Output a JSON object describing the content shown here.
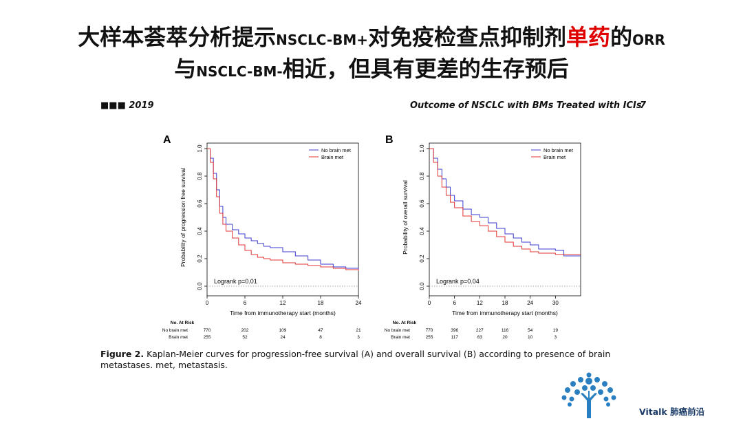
{
  "title": {
    "line1": [
      {
        "text": "大样本荟萃分析提示",
        "style": "big"
      },
      {
        "text": "NSCLC-BM+",
        "style": "small"
      },
      {
        "text": "对免疫检查点抑制剂",
        "style": "big"
      },
      {
        "text": "单药",
        "style": "red"
      },
      {
        "text": "的",
        "style": "big"
      },
      {
        "text": "ORR",
        "style": "small"
      }
    ],
    "line2": [
      {
        "text": "与",
        "style": "big"
      },
      {
        "text": "NSCLC-BM-",
        "style": "small"
      },
      {
        "text": "相近，但具有更差的生存预后",
        "style": "big"
      }
    ]
  },
  "header": {
    "left": "■■■ 2019",
    "right": "Outcome of NSCLC with BMs Treated with ICIs",
    "page": "7"
  },
  "chart_data": [
    {
      "type": "line",
      "panel": "A",
      "ylabel": "Probability of progression free survival",
      "xlabel": "Time from immunotherapy start (months)",
      "xlim": [
        0,
        24
      ],
      "ylim": [
        0,
        1
      ],
      "xticks": [
        "0",
        "6",
        "12",
        "18",
        "24"
      ],
      "yticks": [
        "0.0",
        "0.2",
        "0.4",
        "0.6",
        "0.8",
        "1.0"
      ],
      "legend": [
        "No brain met",
        "Brain met"
      ],
      "annotation": "Logrank p=0.01",
      "series": [
        {
          "name": "No brain met",
          "color": "#3b3bd0",
          "x": [
            0,
            0.5,
            1,
            1.5,
            2,
            2.5,
            3,
            4,
            5,
            6,
            7,
            8,
            9,
            10,
            12,
            14,
            16,
            18,
            20,
            22,
            24
          ],
          "y": [
            1,
            0.93,
            0.82,
            0.7,
            0.58,
            0.5,
            0.45,
            0.41,
            0.38,
            0.35,
            0.33,
            0.31,
            0.29,
            0.28,
            0.25,
            0.22,
            0.19,
            0.16,
            0.14,
            0.13,
            0.12
          ]
        },
        {
          "name": "Brain met",
          "color": "#e03434",
          "x": [
            0,
            0.5,
            1,
            1.5,
            2,
            2.5,
            3,
            4,
            5,
            6,
            7,
            8,
            9,
            10,
            12,
            14,
            16,
            18,
            20,
            22,
            24
          ],
          "y": [
            1,
            0.9,
            0.78,
            0.65,
            0.53,
            0.45,
            0.4,
            0.35,
            0.3,
            0.26,
            0.23,
            0.21,
            0.2,
            0.19,
            0.17,
            0.16,
            0.15,
            0.14,
            0.13,
            0.12,
            0.11
          ]
        }
      ],
      "risk_table": {
        "title": "No. At Risk",
        "rows": [
          {
            "label": "No brain met",
            "values": [
              "770",
              "202",
              "109",
              "47",
              "21"
            ]
          },
          {
            "label": "Brain met",
            "values": [
              "255",
              "52",
              "24",
              "8",
              "3"
            ]
          }
        ]
      }
    },
    {
      "type": "line",
      "panel": "B",
      "ylabel": "Probability of overall survival",
      "xlabel": "Time from immunotherapy start (months)",
      "xlim": [
        0,
        36
      ],
      "ylim": [
        0,
        1
      ],
      "xticks": [
        "0",
        "6",
        "12",
        "18",
        "24",
        "30"
      ],
      "yticks": [
        "0.0",
        "0.2",
        "0.4",
        "0.6",
        "0.8",
        "1.0"
      ],
      "legend": [
        "No brain met",
        "Brain met"
      ],
      "annotation": "Logrank p=0.04",
      "series": [
        {
          "name": "No brain met",
          "color": "#3b3bd0",
          "x": [
            0,
            1,
            2,
            3,
            4,
            5,
            6,
            8,
            10,
            12,
            14,
            16,
            18,
            20,
            22,
            24,
            26,
            30,
            32,
            36
          ],
          "y": [
            1,
            0.93,
            0.85,
            0.78,
            0.72,
            0.66,
            0.62,
            0.56,
            0.52,
            0.5,
            0.46,
            0.42,
            0.38,
            0.35,
            0.32,
            0.3,
            0.27,
            0.26,
            0.22,
            0.22
          ]
        },
        {
          "name": "Brain met",
          "color": "#e03434",
          "x": [
            0,
            1,
            2,
            3,
            4,
            5,
            6,
            8,
            10,
            12,
            14,
            16,
            18,
            20,
            22,
            24,
            26,
            30,
            32,
            36
          ],
          "y": [
            1,
            0.9,
            0.8,
            0.72,
            0.66,
            0.61,
            0.57,
            0.51,
            0.47,
            0.44,
            0.4,
            0.36,
            0.32,
            0.29,
            0.27,
            0.25,
            0.24,
            0.23,
            0.23,
            0.23
          ]
        }
      ],
      "risk_table": {
        "title": "No. At Risk",
        "rows": [
          {
            "label": "No brain met",
            "values": [
              "770",
              "396",
              "227",
              "116",
              "54",
              "19"
            ]
          },
          {
            "label": "Brain met",
            "values": [
              "255",
              "117",
              "63",
              "20",
              "10",
              "3"
            ]
          }
        ]
      }
    }
  ],
  "caption": {
    "label": "Figure 2.",
    "text": "Kaplan-Meier curves for progression-free survival (A) and overall survival (B) according to presence of brain metastases. met, metastasis."
  },
  "logo": {
    "text": "Vitalk 肺癌前沿",
    "icon": "tree-icon",
    "color": "#2a7fc0"
  }
}
